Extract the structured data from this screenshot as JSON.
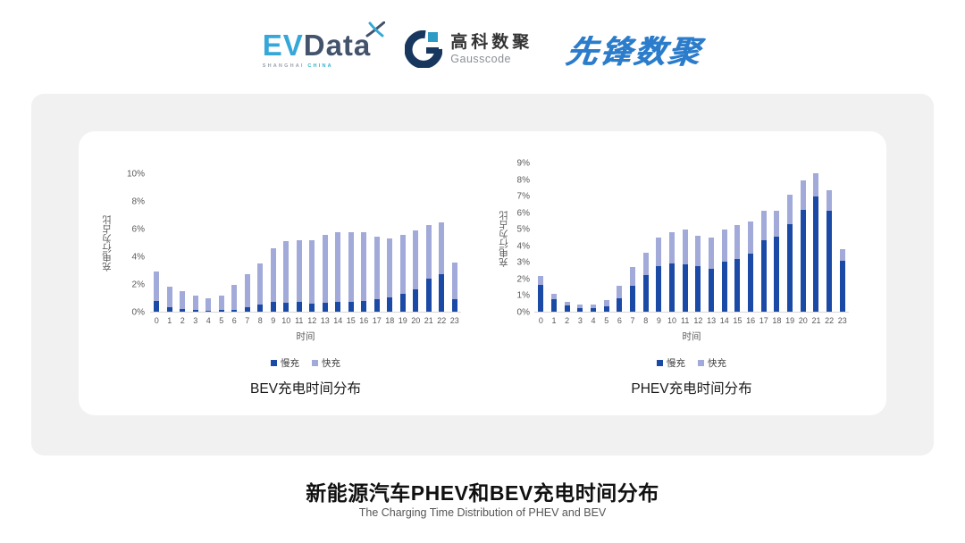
{
  "header": {
    "evdata": {
      "ev": "EV",
      "data": "Data",
      "sub_left": "SHANGHAI",
      "sub_right": "CHINA"
    },
    "gausscode": {
      "cn": "高科数聚",
      "en": "Gausscode"
    },
    "xianfeng": {
      "text": "先锋数聚"
    }
  },
  "footer": {
    "title": "新能源汽车PHEV和BEV充电时间分布",
    "subtitle": "The Charging Time Distribution of PHEV and BEV"
  },
  "colors": {
    "slow_charge": "#1b49a6",
    "fast_charge": "#a2aad9",
    "axis_text": "#595959",
    "gauss_navy": "#17375e",
    "gauss_teal": "#2e9bc6",
    "evdata_blue": "#35a7d8",
    "evdata_dark": "#43536b",
    "xianfeng_blue": "#2b7ccb"
  },
  "chart_data": [
    {
      "type": "bar",
      "stacked": true,
      "title": "BEV充电时间分布",
      "xlabel": "时间",
      "ylabel": "充电行为占比",
      "ylim": [
        0,
        10
      ],
      "ytick_step": 2,
      "ytick_suffix": "%",
      "grid": false,
      "legend_position": "bottom",
      "categories": [
        0,
        1,
        2,
        3,
        4,
        5,
        6,
        7,
        8,
        9,
        10,
        11,
        12,
        13,
        14,
        15,
        16,
        17,
        18,
        19,
        20,
        21,
        22,
        23
      ],
      "series": [
        {
          "name": "慢充",
          "color": "#1b49a6",
          "values": [
            0.75,
            0.3,
            0.17,
            0.1,
            0.08,
            0.1,
            0.15,
            0.35,
            0.5,
            0.7,
            0.65,
            0.7,
            0.6,
            0.65,
            0.7,
            0.7,
            0.8,
            0.9,
            1.05,
            1.3,
            1.6,
            2.4,
            2.7,
            0.9
          ]
        },
        {
          "name": "快充",
          "color": "#a2aad9",
          "values": [
            2.15,
            1.55,
            1.3,
            1.05,
            0.9,
            1.05,
            1.8,
            2.4,
            3.0,
            3.9,
            4.45,
            4.5,
            4.6,
            4.95,
            5.1,
            5.1,
            5.0,
            4.55,
            4.25,
            4.3,
            4.3,
            3.9,
            3.8,
            2.65
          ]
        }
      ]
    },
    {
      "type": "bar",
      "stacked": true,
      "title": "PHEV充电时间分布",
      "xlabel": "时间",
      "ylabel": "充电行为占比",
      "ylim": [
        0,
        9
      ],
      "ytick_step": 1,
      "ytick_suffix": "%",
      "grid": false,
      "legend_position": "bottom",
      "categories": [
        0,
        1,
        2,
        3,
        4,
        5,
        6,
        7,
        8,
        9,
        10,
        11,
        12,
        13,
        14,
        15,
        16,
        17,
        18,
        19,
        20,
        21,
        22,
        23
      ],
      "series": [
        {
          "name": "慢充",
          "color": "#1b49a6",
          "values": [
            1.65,
            0.75,
            0.4,
            0.2,
            0.2,
            0.3,
            0.8,
            1.6,
            2.25,
            2.75,
            2.95,
            2.9,
            2.75,
            2.6,
            3.05,
            3.2,
            3.5,
            4.35,
            4.55,
            5.3,
            6.2,
            7.0,
            6.15,
            3.1
          ]
        },
        {
          "name": "快充",
          "color": "#a2aad9",
          "values": [
            0.5,
            0.35,
            0.2,
            0.25,
            0.25,
            0.4,
            0.75,
            1.1,
            1.35,
            1.75,
            1.85,
            2.1,
            1.85,
            1.9,
            1.95,
            2.05,
            2.0,
            1.8,
            1.6,
            1.8,
            1.75,
            1.4,
            1.2,
            0.7
          ]
        }
      ]
    }
  ]
}
